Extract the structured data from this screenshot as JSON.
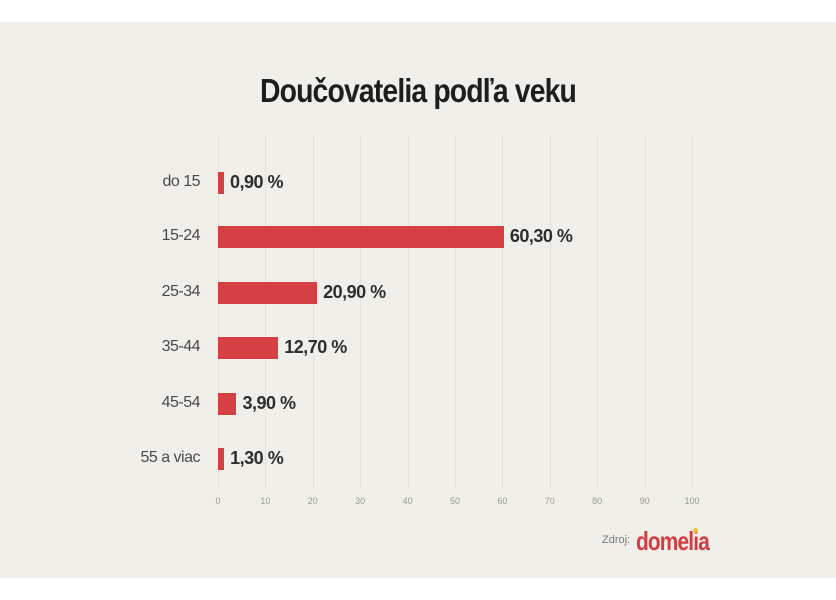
{
  "title": "Doučovatelia podľa veku",
  "source_label": "Zdroj:",
  "brand": "domelia",
  "colors": {
    "bar": "#d64045",
    "background": "#f0efe9",
    "brand": "#d43c45",
    "brand_dot": "#f2c530"
  },
  "axis": {
    "ticks": [
      "0",
      "10",
      "20",
      "30",
      "40",
      "50",
      "60",
      "70",
      "80",
      "90",
      "100"
    ]
  },
  "rows": [
    {
      "label": "do 15",
      "value": 0.9,
      "value_label": "0,90 %"
    },
    {
      "label": "15-24",
      "value": 60.3,
      "value_label": "60,30 %"
    },
    {
      "label": "25-34",
      "value": 20.9,
      "value_label": "20,90 %"
    },
    {
      "label": "35-44",
      "value": 12.7,
      "value_label": "12,70 %"
    },
    {
      "label": "45-54",
      "value": 3.9,
      "value_label": "3,90 %"
    },
    {
      "label": "55 a viac",
      "value": 1.3,
      "value_label": "1,30 %"
    }
  ],
  "chart_data": {
    "type": "bar",
    "orientation": "horizontal",
    "title": "Doučovatelia podľa veku",
    "categories": [
      "do 15",
      "15-24",
      "25-34",
      "35-44",
      "45-54",
      "55 a viac"
    ],
    "values": [
      0.9,
      60.3,
      20.9,
      12.7,
      3.9,
      1.3
    ],
    "value_labels": [
      "0,90 %",
      "60,30 %",
      "20,90 %",
      "12,70 %",
      "3,90 %",
      "1,30 %"
    ],
    "xlabel": "",
    "ylabel": "",
    "xlim": [
      0,
      100
    ],
    "xticks": [
      0,
      10,
      20,
      30,
      40,
      50,
      60,
      70,
      80,
      90,
      100
    ],
    "grid": true,
    "legend": null,
    "source": "Zdroj: domelia"
  }
}
